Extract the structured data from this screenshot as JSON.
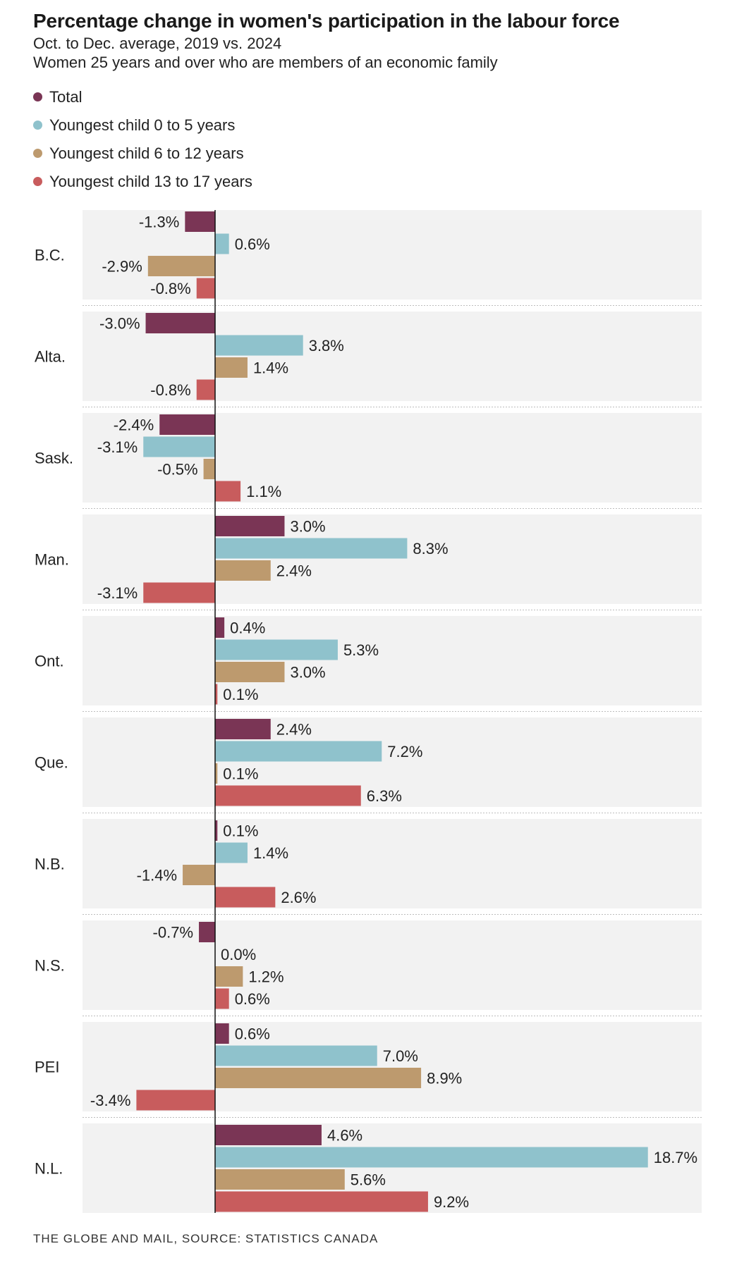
{
  "title": "Percentage change in women's participation in the labour force",
  "subtitle1": "Oct. to Dec. average, 2019 vs. 2024",
  "subtitle2": "Women 25 years and over who are members of an economic family",
  "footer": "THE GLOBE AND MAIL, SOURCE: STATISTICS CANADA",
  "colors": {
    "total": "#7a3555",
    "child_0_5": "#8fc2cc",
    "child_6_12": "#bd9a6e",
    "child_13_17": "#c85c5d",
    "panel_bg": "#f2f2f2",
    "axis": "#111111"
  },
  "legend": [
    {
      "label": "Total",
      "color": "#7a3555"
    },
    {
      "label": "Youngest child 0 to 5 years",
      "color": "#8fc2cc"
    },
    {
      "label": "Youngest child 6 to 12 years",
      "color": "#bd9a6e"
    },
    {
      "label": "Youngest child 13 to 17 years",
      "color": "#c85c5d"
    }
  ],
  "chart_data": {
    "type": "bar",
    "orientation": "horizontal",
    "categories": [
      "B.C.",
      "Alta.",
      "Sask.",
      "Man.",
      "Ont.",
      "Que.",
      "N.B.",
      "N.S.",
      "PEI",
      "N.L."
    ],
    "series": [
      {
        "name": "Total",
        "color": "#7a3555",
        "values": [
          -1.3,
          -3.0,
          -2.4,
          3.0,
          0.4,
          2.4,
          0.1,
          -0.7,
          0.6,
          4.6
        ]
      },
      {
        "name": "Youngest child 0 to 5 years",
        "color": "#8fc2cc",
        "values": [
          0.6,
          3.8,
          -3.1,
          8.3,
          5.3,
          7.2,
          1.4,
          0.0,
          7.0,
          18.7
        ]
      },
      {
        "name": "Youngest child 6 to 12 years",
        "color": "#bd9a6e",
        "values": [
          -2.9,
          1.4,
          -0.5,
          2.4,
          3.0,
          0.1,
          -1.4,
          1.2,
          8.9,
          5.6
        ]
      },
      {
        "name": "Youngest child 13 to 17 years",
        "color": "#c85c5d",
        "values": [
          -0.8,
          -0.8,
          1.1,
          -3.1,
          0.1,
          6.3,
          2.6,
          0.6,
          -3.4,
          9.2
        ]
      }
    ],
    "value_suffix": "%",
    "xlim": [
      -5.7,
      20.8
    ],
    "grid": false,
    "legend_position": "top-left"
  }
}
